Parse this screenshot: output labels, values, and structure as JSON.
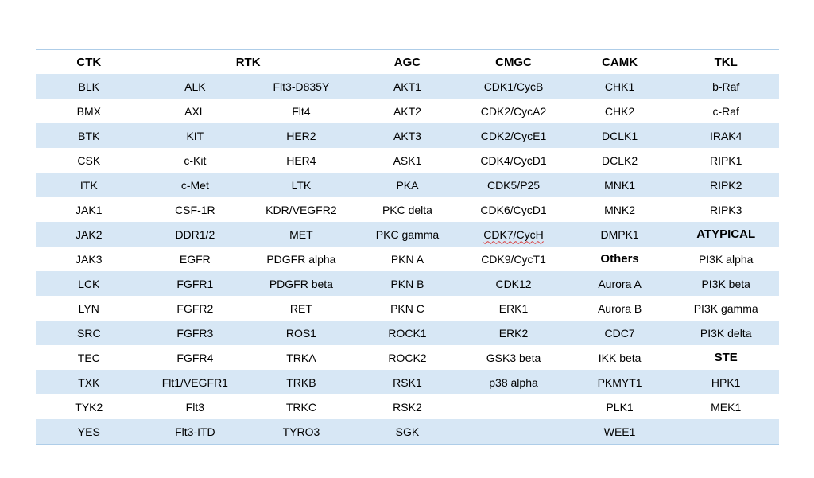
{
  "colors": {
    "background": "#ffffff",
    "row_shade": "#d7e7f5",
    "table_border": "#aecde8",
    "spellcheck_underline": "#d83b3b",
    "text": "#000000"
  },
  "table": {
    "headers": [
      {
        "label": "CTK",
        "span": 1
      },
      {
        "label": "RTK",
        "span": 2
      },
      {
        "label": "AGC",
        "span": 1
      },
      {
        "label": "CMGC",
        "span": 1
      },
      {
        "label": "CAMK",
        "span": 1
      },
      {
        "label": "TKL",
        "span": 1
      }
    ],
    "rows": [
      [
        "BLK",
        "ALK",
        "Flt3-D835Y",
        "AKT1",
        "CDK1/CycB",
        "CHK1",
        "b-Raf"
      ],
      [
        "BMX",
        "AXL",
        "Flt4",
        "AKT2",
        "CDK2/CycA2",
        "CHK2",
        "c-Raf"
      ],
      [
        "BTK",
        "KIT",
        "HER2",
        "AKT3",
        "CDK2/CycE1",
        "DCLK1",
        "IRAK4"
      ],
      [
        "CSK",
        "c-Kit",
        "HER4",
        "ASK1",
        "CDK4/CycD1",
        "DCLK2",
        "RIPK1"
      ],
      [
        "ITK",
        "c-Met",
        "LTK",
        "PKA",
        "CDK5/P25",
        "MNK1",
        "RIPK2"
      ],
      [
        "JAK1",
        "CSF-1R",
        "KDR/VEGFR2",
        "PKC delta",
        "CDK6/CycD1",
        "MNK2",
        "RIPK3"
      ],
      [
        "JAK2",
        "DDR1/2",
        "MET",
        "PKC gamma",
        "CDK7/CycH",
        "DMPK1",
        "ATYPICAL"
      ],
      [
        "JAK3",
        "EGFR",
        "PDGFR alpha",
        "PKN A",
        "CDK9/CycT1",
        "Others",
        "PI3K alpha"
      ],
      [
        "LCK",
        "FGFR1",
        "PDGFR beta",
        "PKN B",
        "CDK12",
        "Aurora A",
        "PI3K beta"
      ],
      [
        "LYN",
        "FGFR2",
        "RET",
        "PKN C",
        "ERK1",
        "Aurora B",
        "PI3K gamma"
      ],
      [
        "SRC",
        "FGFR3",
        "ROS1",
        "ROCK1",
        "ERK2",
        "CDC7",
        "PI3K delta"
      ],
      [
        "TEC",
        "FGFR4",
        "TRKA",
        "ROCK2",
        "GSK3 beta",
        "IKK beta",
        "STE"
      ],
      [
        "TXK",
        "Flt1/VEGFR1",
        "TRKB",
        "RSK1",
        "p38 alpha",
        "PKMYT1",
        "HPK1"
      ],
      [
        "TYK2",
        "Flt3",
        "TRKC",
        "RSK2",
        "",
        "PLK1",
        "MEK1"
      ],
      [
        "YES",
        "Flt3-ITD",
        "TYRO3",
        "SGK",
        "",
        "WEE1",
        ""
      ]
    ],
    "bold_cells": [
      [
        6,
        6
      ],
      [
        7,
        5
      ],
      [
        11,
        6
      ]
    ],
    "spellcheck_cells": [
      [
        6,
        4
      ]
    ]
  }
}
